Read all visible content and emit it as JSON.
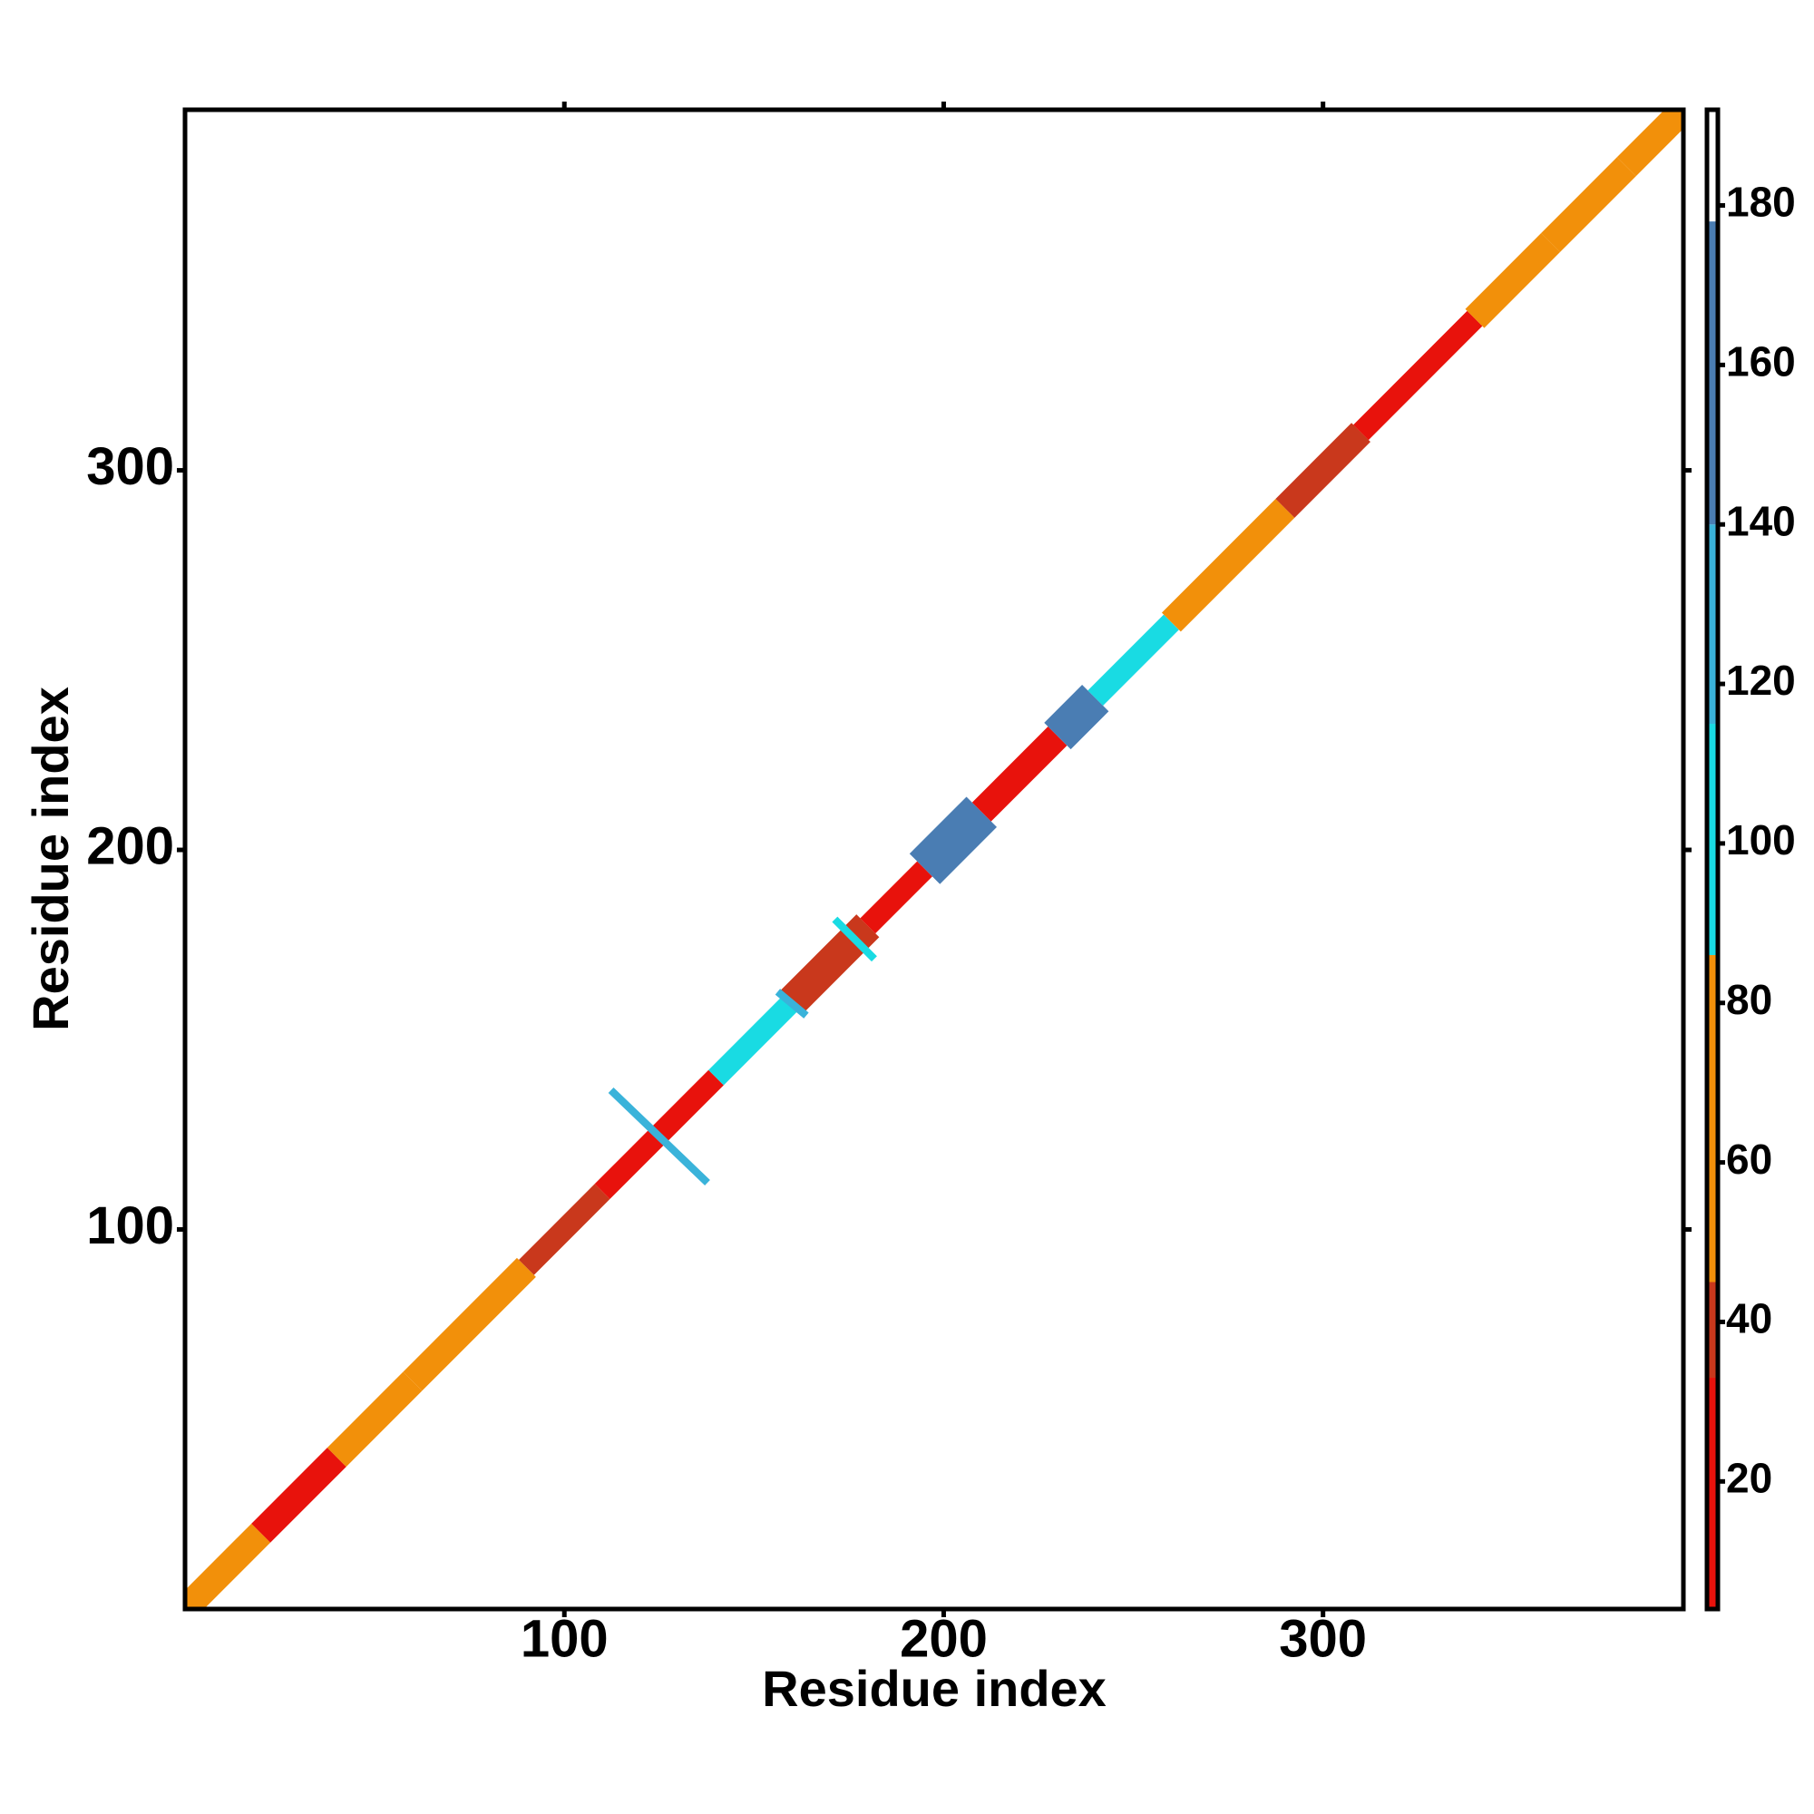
{
  "chart_data": {
    "type": "heatmap",
    "xlabel": "Residue index",
    "ylabel": "Residue index",
    "xlim": [
      0,
      395
    ],
    "ylim": [
      0,
      395
    ],
    "xticks": [
      100,
      200,
      300
    ],
    "yticks": [
      100,
      200,
      300
    ],
    "clim": [
      4,
      192
    ],
    "cticks": [
      20,
      40,
      60,
      80,
      100,
      120,
      140,
      160,
      180
    ],
    "colormap": [
      {
        "from": 4,
        "to": 33,
        "color": "#e8120c"
      },
      {
        "from": 33,
        "to": 45,
        "color": "#c9381c"
      },
      {
        "from": 45,
        "to": 86,
        "color": "#f2900a"
      },
      {
        "from": 86,
        "to": 115,
        "color": "#19dbe3"
      },
      {
        "from": 115,
        "to": 140,
        "color": "#3ab3da"
      },
      {
        "from": 140,
        "to": 178,
        "color": "#4a7db3"
      },
      {
        "from": 178,
        "to": 192,
        "color": "#ffffff"
      }
    ],
    "segments": [
      {
        "start": 0,
        "end": 20,
        "value": 60,
        "width": 5
      },
      {
        "start": 20,
        "end": 40,
        "value": 25,
        "width": 5
      },
      {
        "start": 40,
        "end": 60,
        "value": 70,
        "width": 5
      },
      {
        "start": 60,
        "end": 90,
        "value": 50,
        "width": 5
      },
      {
        "start": 90,
        "end": 110,
        "value": 35,
        "width": 4
      },
      {
        "start": 110,
        "end": 140,
        "value": 20,
        "width": 4
      },
      {
        "start": 140,
        "end": 160,
        "value": 100,
        "width": 4
      },
      {
        "start": 160,
        "end": 180,
        "value": 40,
        "width": 6
      },
      {
        "start": 180,
        "end": 195,
        "value": 25,
        "width": 4
      },
      {
        "start": 195,
        "end": 210,
        "value": 145,
        "width": 8
      },
      {
        "start": 210,
        "end": 230,
        "value": 30,
        "width": 5
      },
      {
        "start": 230,
        "end": 240,
        "value": 150,
        "width": 7
      },
      {
        "start": 240,
        "end": 260,
        "value": 100,
        "width": 4
      },
      {
        "start": 260,
        "end": 290,
        "value": 70,
        "width": 5
      },
      {
        "start": 290,
        "end": 310,
        "value": 40,
        "width": 5
      },
      {
        "start": 310,
        "end": 340,
        "value": 20,
        "width": 4
      },
      {
        "start": 340,
        "end": 360,
        "value": 70,
        "width": 5
      },
      {
        "start": 360,
        "end": 380,
        "value": 50,
        "width": 5
      },
      {
        "start": 380,
        "end": 395,
        "value": 60,
        "width": 5
      }
    ],
    "features": [
      {
        "x1": 113,
        "y1": 136,
        "x2": 137,
        "y2": 113,
        "value": 130,
        "width": 2
      },
      {
        "x1": 157,
        "y1": 162,
        "x2": 163,
        "y2": 157,
        "value": 130,
        "width": 2
      },
      {
        "x1": 172,
        "y1": 181,
        "x2": 181,
        "y2": 172,
        "value": 110,
        "width": 2
      }
    ]
  }
}
